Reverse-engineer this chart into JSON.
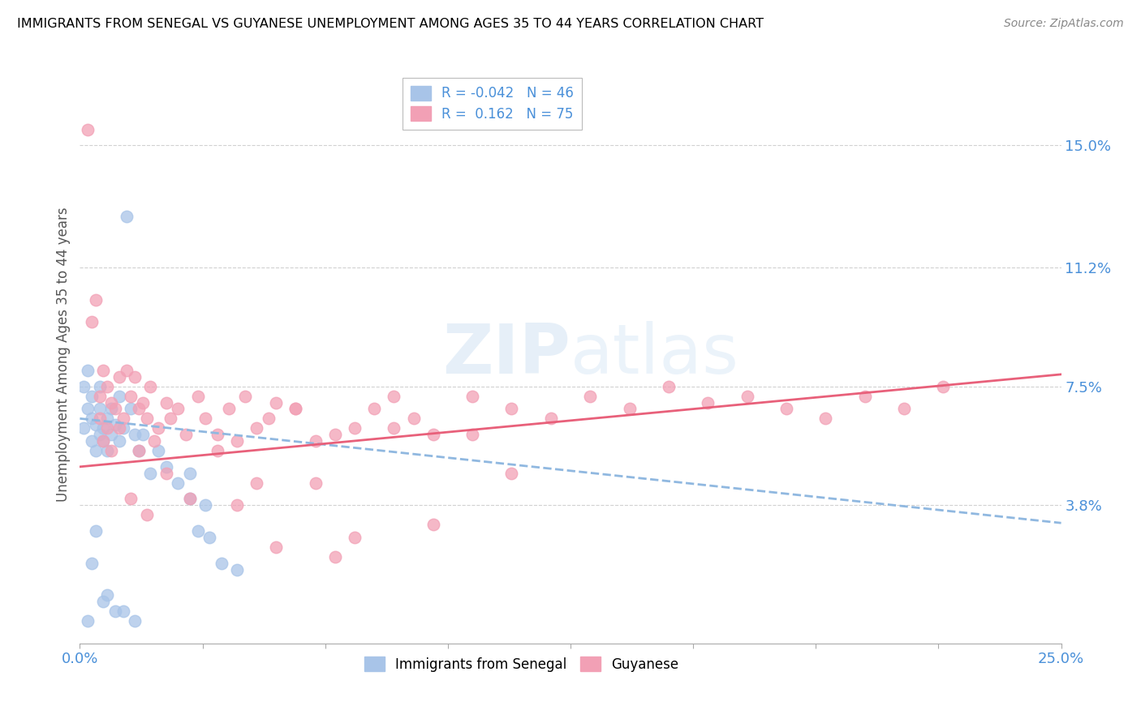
{
  "title": "IMMIGRANTS FROM SENEGAL VS GUYANESE UNEMPLOYMENT AMONG AGES 35 TO 44 YEARS CORRELATION CHART",
  "source": "Source: ZipAtlas.com",
  "ylabel_right": [
    "15.0%",
    "11.2%",
    "7.5%",
    "3.8%"
  ],
  "ylabel_right_vals": [
    0.15,
    0.112,
    0.075,
    0.038
  ],
  "ylabel_text": "Unemployment Among Ages 35 to 44 years",
  "xmin": 0.0,
  "xmax": 0.25,
  "ymin": -0.005,
  "ymax": 0.175,
  "r1": -0.042,
  "n1": 46,
  "r2": 0.162,
  "n2": 75,
  "color_blue": "#A8C4E8",
  "color_pink": "#F2A0B5",
  "color_blue_line": "#90B8E0",
  "color_pink_line": "#E8607A",
  "blue_intercept": 0.065,
  "blue_slope": -0.13,
  "pink_intercept": 0.05,
  "pink_slope": 0.115,
  "blue_x": [
    0.001,
    0.001,
    0.002,
    0.002,
    0.003,
    0.003,
    0.003,
    0.004,
    0.004,
    0.005,
    0.005,
    0.005,
    0.006,
    0.006,
    0.007,
    0.007,
    0.008,
    0.008,
    0.009,
    0.01,
    0.01,
    0.011,
    0.012,
    0.013,
    0.014,
    0.015,
    0.016,
    0.018,
    0.02,
    0.022,
    0.025,
    0.028,
    0.03,
    0.033,
    0.036,
    0.04,
    0.028,
    0.032,
    0.003,
    0.004,
    0.006,
    0.007,
    0.009,
    0.011,
    0.002,
    0.014
  ],
  "blue_y": [
    0.075,
    0.062,
    0.08,
    0.068,
    0.072,
    0.058,
    0.065,
    0.063,
    0.055,
    0.068,
    0.06,
    0.075,
    0.062,
    0.058,
    0.065,
    0.055,
    0.068,
    0.06,
    0.063,
    0.072,
    0.058,
    0.062,
    0.128,
    0.068,
    0.06,
    0.055,
    0.06,
    0.048,
    0.055,
    0.05,
    0.045,
    0.04,
    0.03,
    0.028,
    0.02,
    0.018,
    0.048,
    0.038,
    0.02,
    0.03,
    0.008,
    0.01,
    0.005,
    0.005,
    0.002,
    0.002
  ],
  "pink_x": [
    0.002,
    0.003,
    0.004,
    0.005,
    0.005,
    0.006,
    0.006,
    0.007,
    0.007,
    0.008,
    0.008,
    0.009,
    0.01,
    0.01,
    0.011,
    0.012,
    0.013,
    0.014,
    0.015,
    0.015,
    0.016,
    0.017,
    0.018,
    0.019,
    0.02,
    0.022,
    0.023,
    0.025,
    0.027,
    0.03,
    0.032,
    0.035,
    0.038,
    0.04,
    0.042,
    0.045,
    0.048,
    0.05,
    0.055,
    0.06,
    0.065,
    0.07,
    0.075,
    0.08,
    0.085,
    0.09,
    0.1,
    0.11,
    0.12,
    0.13,
    0.14,
    0.15,
    0.16,
    0.17,
    0.18,
    0.19,
    0.2,
    0.21,
    0.22,
    0.04,
    0.05,
    0.06,
    0.07,
    0.08,
    0.09,
    0.1,
    0.11,
    0.013,
    0.017,
    0.022,
    0.028,
    0.035,
    0.045,
    0.055,
    0.065
  ],
  "pink_y": [
    0.155,
    0.095,
    0.102,
    0.072,
    0.065,
    0.08,
    0.058,
    0.075,
    0.062,
    0.07,
    0.055,
    0.068,
    0.078,
    0.062,
    0.065,
    0.08,
    0.072,
    0.078,
    0.068,
    0.055,
    0.07,
    0.065,
    0.075,
    0.058,
    0.062,
    0.07,
    0.065,
    0.068,
    0.06,
    0.072,
    0.065,
    0.06,
    0.068,
    0.058,
    0.072,
    0.062,
    0.065,
    0.07,
    0.068,
    0.058,
    0.06,
    0.062,
    0.068,
    0.072,
    0.065,
    0.06,
    0.072,
    0.068,
    0.065,
    0.072,
    0.068,
    0.075,
    0.07,
    0.072,
    0.068,
    0.065,
    0.072,
    0.068,
    0.075,
    0.038,
    0.025,
    0.045,
    0.028,
    0.062,
    0.032,
    0.06,
    0.048,
    0.04,
    0.035,
    0.048,
    0.04,
    0.055,
    0.045,
    0.068,
    0.022
  ]
}
